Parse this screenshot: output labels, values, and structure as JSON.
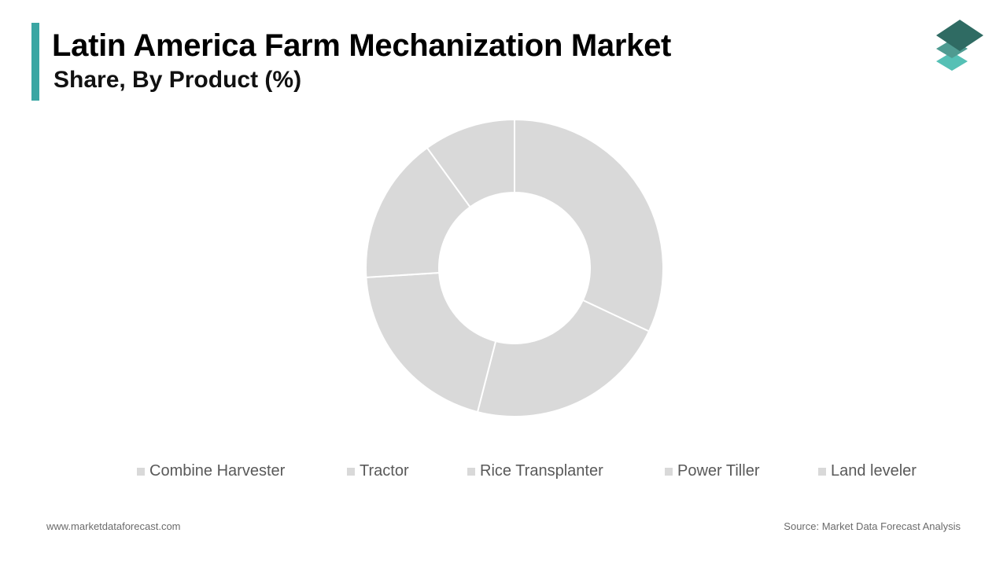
{
  "header": {
    "title": "Latin America Farm Mechanization Market",
    "subtitle": "Share, By Product (%)"
  },
  "colors": {
    "accent": "#3aa6a3",
    "slice": "#d9d9d9",
    "slice_border": "#ffffff",
    "logo_dark": "#2f6b63",
    "logo_mid": "#4f9b91",
    "logo_light": "#55c0b5"
  },
  "logo_icon": "layered-diamonds-icon",
  "chart_data": {
    "type": "pie",
    "donut": true,
    "categories": [
      "Combine Harvester",
      "Tractor",
      "Rice Transplanter",
      "Power Tiller",
      "Land leveler"
    ],
    "values": [
      32,
      22,
      20,
      16,
      10
    ],
    "legend_position": "bottom"
  },
  "footer": {
    "website": "www.marketdataforecast.com",
    "source": "Source: Market Data Forecast Analysis"
  }
}
